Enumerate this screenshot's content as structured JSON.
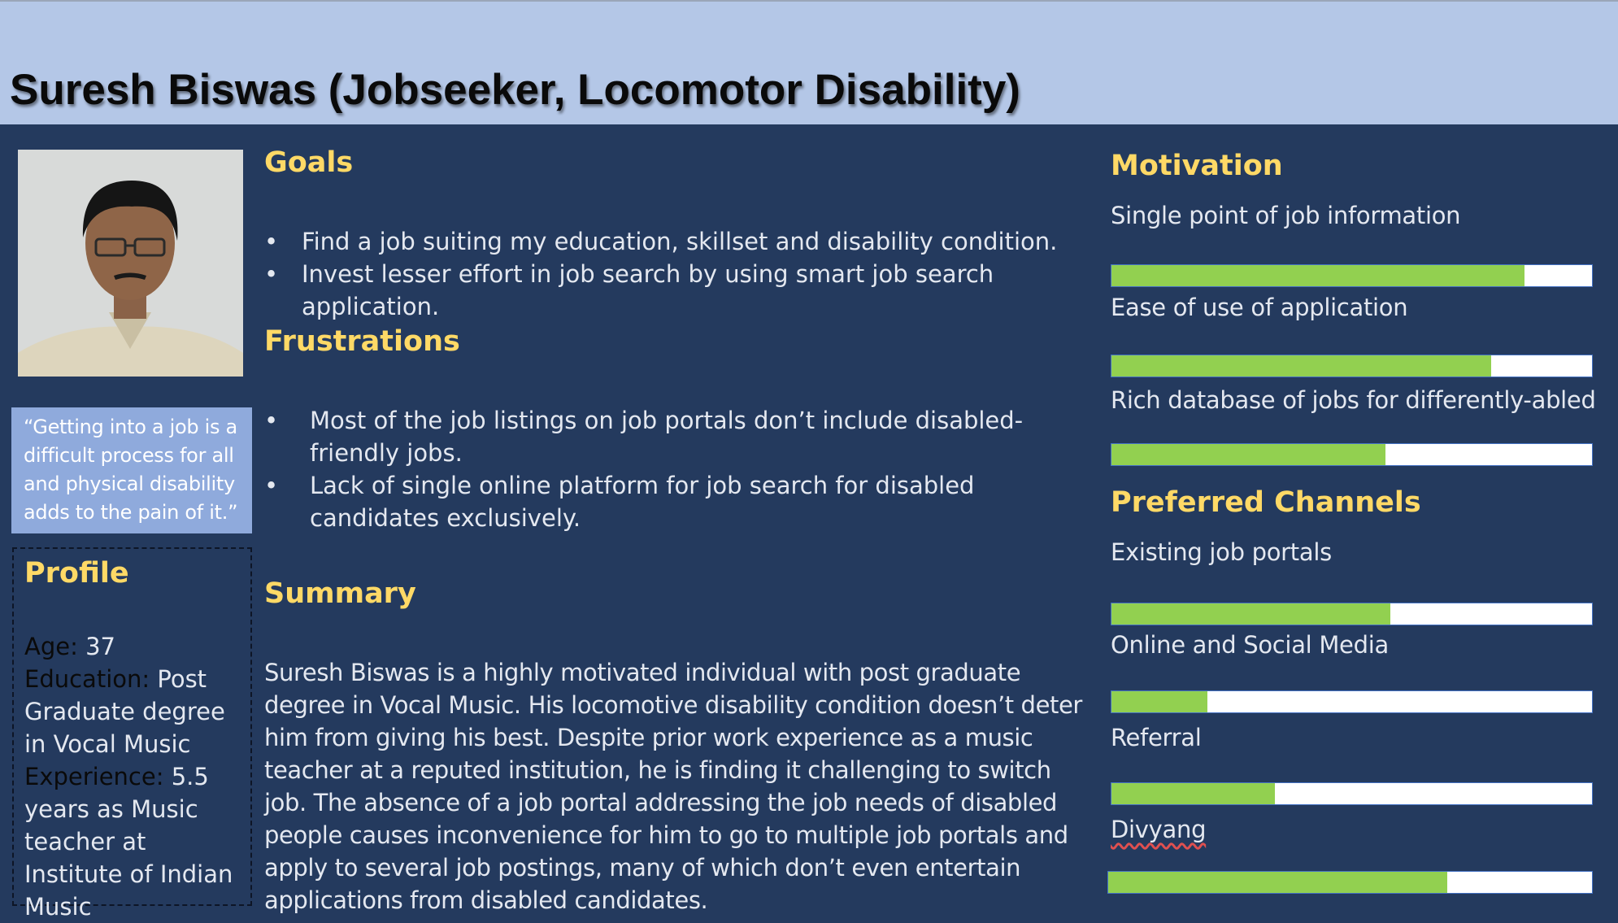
{
  "title": "Suresh Biswas (Jobseeker, Locomotor Disability)",
  "quote": "“Getting into a job is a difficult process for all and physical disability adds to the pain of it.”",
  "profile": {
    "heading": "Profile",
    "age_label": "Age:",
    "age_value": " 37",
    "education_label": "Education:",
    "education_value": " Post Graduate degree in Vocal Music",
    "experience_label": "Experience:",
    "experience_value": " 5.5 years as Music teacher at Institute of Indian Music"
  },
  "goals": {
    "heading": "Goals",
    "items": [
      "Find a job suiting my education, skillset and disability condition.",
      "Invest lesser effort in job search by using smart job search application."
    ]
  },
  "frustrations": {
    "heading": "Frustrations",
    "items": [
      "Most of the job listings on job portals don’t include disabled-friendly jobs.",
      "Lack of single online platform for job search for disabled candidates exclusively."
    ]
  },
  "summary": {
    "heading": "Summary",
    "text": "Suresh Biswas is a highly motivated individual with post graduate degree in Vocal Music. His locomotive disability condition doesn’t deter him from giving his best. Despite prior work experience as a music teacher at a reputed institution, he is finding it challenging to switch job. The absence of a job portal addressing the job needs of disabled people causes inconvenience for him to go to multiple job portals and apply to several job postings, many of which don’t even entertain applications from disabled candidates."
  },
  "motivation": {
    "heading": "Motivation",
    "items": [
      {
        "label": "Single point of  job information",
        "level_percent": 86
      },
      {
        "label": "Ease of use of application",
        "level_percent": 79
      },
      {
        "label": "Rich database of jobs for differently-abled",
        "level_percent": 57
      }
    ]
  },
  "channels": {
    "heading": "Preferred Channels",
    "items": [
      {
        "label": "Existing job portals",
        "level_percent": 58
      },
      {
        "label": "Online and Social Media",
        "level_percent": 20
      },
      {
        "label": "Referral",
        "level_percent": 34
      },
      {
        "label": "Divyang",
        "level_percent": 70
      }
    ]
  },
  "colors": {
    "background": "#243a5e",
    "header": "#b4c7e7",
    "heading_yellow": "#ffd966",
    "bar_fill": "#92d050",
    "quote_box": "#8faadc"
  }
}
